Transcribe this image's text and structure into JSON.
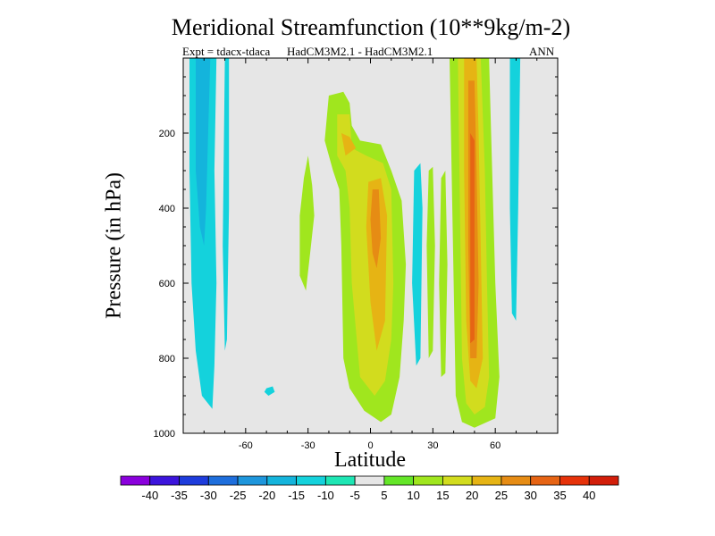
{
  "chart_data": {
    "type": "contour",
    "title": "Meridional Streamfunction (10**9kg/m-2)",
    "subtitle_left": "Expt = tdacx-tdaca",
    "subtitle_center": "HadCM3M2.1 - HadCM3M2.1",
    "subtitle_right": "ANN",
    "xlabel": "Latitude",
    "ylabel": "Pressure (in hPa)",
    "xlim": [
      -90,
      90
    ],
    "ylim": [
      0,
      1000
    ],
    "y_inverted": true,
    "x_ticks": [
      -60,
      -30,
      0,
      30,
      60
    ],
    "x_tick_labels": [
      "-60",
      "-30",
      "0",
      "30",
      "60"
    ],
    "y_ticks": [
      200,
      400,
      600,
      800,
      1000
    ],
    "y_tick_labels": [
      "200",
      "400",
      "600",
      "800",
      "1000"
    ],
    "colorbar": {
      "labels": [
        "-40",
        "-35",
        "-30",
        "-25",
        "-20",
        "-15",
        "-10",
        "-5",
        "5",
        "10",
        "15",
        "20",
        "25",
        "30",
        "35",
        "40"
      ],
      "colors": [
        "#8a00dc",
        "#3c14dc",
        "#1e3cdc",
        "#1e6edc",
        "#1e96dc",
        "#14b4dc",
        "#14d2dc",
        "#1ee6b4",
        "#e6e6e6",
        "#64e628",
        "#a0e61e",
        "#d2dc1e",
        "#e6b414",
        "#e68c14",
        "#e66414",
        "#e6320a",
        "#d21e0a"
      ]
    },
    "regions": [
      {
        "name": "blue-band-left-outer",
        "level": -10,
        "points": [
          [
            -87,
            0
          ],
          [
            -74,
            0
          ],
          [
            -75,
            300
          ],
          [
            -74,
            600
          ],
          [
            -75,
            820
          ],
          [
            -76,
            935
          ],
          [
            -81,
            900
          ],
          [
            -84,
            780
          ],
          [
            -86,
            600
          ],
          [
            -87,
            300
          ]
        ]
      },
      {
        "name": "blue-band-left-inner",
        "level": -15,
        "points": [
          [
            -84,
            0
          ],
          [
            -77,
            0
          ],
          [
            -78,
            200
          ],
          [
            -79,
            400
          ],
          [
            -80,
            500
          ],
          [
            -82,
            450
          ],
          [
            -84,
            300
          ]
        ]
      },
      {
        "name": "blue-band-left-strip",
        "level": -10,
        "points": [
          [
            -70,
            0
          ],
          [
            -68,
            0
          ],
          [
            -68,
            400
          ],
          [
            -69,
            750
          ],
          [
            -70,
            780
          ],
          [
            -71,
            500
          ]
        ]
      },
      {
        "name": "blue-blob-south",
        "level": -10,
        "points": [
          [
            -50,
            880
          ],
          [
            -47,
            875
          ],
          [
            -46,
            890
          ],
          [
            -49,
            900
          ],
          [
            -51,
            890
          ]
        ]
      },
      {
        "name": "green-lobe-subtropics",
        "level": 10,
        "points": [
          [
            -30,
            260
          ],
          [
            -28,
            340
          ],
          [
            -27,
            420
          ],
          [
            -29,
            520
          ],
          [
            -31,
            620
          ],
          [
            -34,
            580
          ],
          [
            -34,
            420
          ],
          [
            -32,
            320
          ]
        ]
      },
      {
        "name": "green-cell-tropics",
        "level": 10,
        "points": [
          [
            -20,
            100
          ],
          [
            -13,
            90
          ],
          [
            -10,
            120
          ],
          [
            -9,
            180
          ],
          [
            -5,
            220
          ],
          [
            5,
            230
          ],
          [
            10,
            300
          ],
          [
            15,
            380
          ],
          [
            17,
            550
          ],
          [
            16,
            700
          ],
          [
            14,
            850
          ],
          [
            10,
            950
          ],
          [
            5,
            970
          ],
          [
            -3,
            940
          ],
          [
            -10,
            880
          ],
          [
            -13,
            800
          ],
          [
            -14,
            500
          ],
          [
            -15,
            350
          ],
          [
            -18,
            300
          ],
          [
            -22,
            220
          ]
        ]
      },
      {
        "name": "yellow-green-cell",
        "level": 15,
        "points": [
          [
            -16,
            150
          ],
          [
            -10,
            150
          ],
          [
            -9,
            240
          ],
          [
            -2,
            260
          ],
          [
            6,
            280
          ],
          [
            10,
            350
          ],
          [
            11,
            600
          ],
          [
            10,
            750
          ],
          [
            7,
            860
          ],
          [
            2,
            900
          ],
          [
            -5,
            850
          ],
          [
            -9,
            600
          ],
          [
            -10,
            400
          ],
          [
            -12,
            300
          ],
          [
            -16,
            260
          ]
        ]
      },
      {
        "name": "yellow-cell",
        "level": 20,
        "points": [
          [
            -14,
            200
          ],
          [
            -10,
            210
          ],
          [
            -7,
            240
          ],
          [
            -12,
            260
          ]
        ]
      },
      {
        "name": "yellow-core",
        "level": 20,
        "points": [
          [
            -1,
            330
          ],
          [
            5,
            320
          ],
          [
            8,
            420
          ],
          [
            7,
            700
          ],
          [
            3,
            780
          ],
          [
            0,
            650
          ],
          [
            -2,
            450
          ]
        ]
      },
      {
        "name": "orange-core",
        "level": 25,
        "points": [
          [
            1,
            350
          ],
          [
            4,
            350
          ],
          [
            5,
            480
          ],
          [
            3,
            560
          ],
          [
            1,
            520
          ],
          [
            0,
            430
          ]
        ]
      },
      {
        "name": "cyan-mid-strip",
        "level": -10,
        "points": [
          [
            21,
            300
          ],
          [
            24,
            280
          ],
          [
            25,
            400
          ],
          [
            24,
            800
          ],
          [
            22,
            820
          ],
          [
            20,
            600
          ]
        ]
      },
      {
        "name": "green-strip-a",
        "level": 10,
        "points": [
          [
            28,
            300
          ],
          [
            30,
            290
          ],
          [
            31,
            500
          ],
          [
            30,
            780
          ],
          [
            28,
            800
          ],
          [
            27,
            500
          ]
        ]
      },
      {
        "name": "green-strip-b",
        "level": 10,
        "points": [
          [
            34,
            320
          ],
          [
            36,
            300
          ],
          [
            37,
            550
          ],
          [
            36,
            840
          ],
          [
            34,
            850
          ],
          [
            33,
            600
          ]
        ]
      },
      {
        "name": "green-cell-nh",
        "level": 10,
        "points": [
          [
            38,
            0
          ],
          [
            57,
            0
          ],
          [
            58,
            200
          ],
          [
            60,
            600
          ],
          [
            62,
            850
          ],
          [
            60,
            960
          ],
          [
            50,
            985
          ],
          [
            44,
            970
          ],
          [
            41,
            900
          ],
          [
            40,
            600
          ],
          [
            39,
            300
          ]
        ]
      },
      {
        "name": "yellow-cell-nh",
        "level": 15,
        "points": [
          [
            42,
            0
          ],
          [
            53,
            0
          ],
          [
            55,
            300
          ],
          [
            56,
            600
          ],
          [
            57,
            850
          ],
          [
            55,
            930
          ],
          [
            50,
            950
          ],
          [
            46,
            920
          ],
          [
            44,
            800
          ],
          [
            43,
            400
          ]
        ]
      },
      {
        "name": "yellow-core-nh",
        "level": 20,
        "points": [
          [
            45,
            0
          ],
          [
            51,
            0
          ],
          [
            52,
            200
          ],
          [
            53,
            500
          ],
          [
            54,
            800
          ],
          [
            51,
            880
          ],
          [
            48,
            860
          ],
          [
            46,
            700
          ],
          [
            45,
            300
          ]
        ]
      },
      {
        "name": "orange-core-nh",
        "level": 25,
        "points": [
          [
            47,
            60
          ],
          [
            50,
            60
          ],
          [
            51,
            300
          ],
          [
            52,
            600
          ],
          [
            51,
            800
          ],
          [
            48,
            800
          ],
          [
            47,
            500
          ]
        ]
      },
      {
        "name": "dark-orange-core-nh",
        "level": 30,
        "points": [
          [
            48,
            200
          ],
          [
            50,
            220
          ],
          [
            50,
            500
          ],
          [
            50,
            750
          ],
          [
            48,
            760
          ],
          [
            48,
            450
          ]
        ]
      },
      {
        "name": "cyan-strip-nh",
        "level": -10,
        "points": [
          [
            67,
            0
          ],
          [
            72,
            0
          ],
          [
            71,
            400
          ],
          [
            70,
            700
          ],
          [
            68,
            680
          ],
          [
            67,
            400
          ]
        ]
      }
    ]
  }
}
